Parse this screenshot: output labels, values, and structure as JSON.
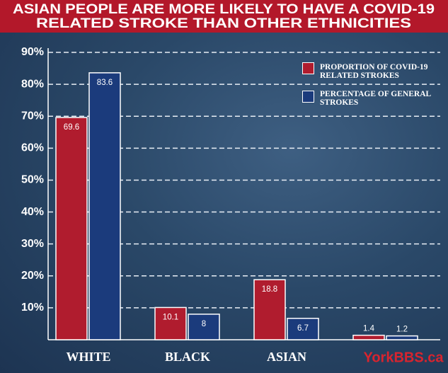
{
  "chart_data": {
    "type": "bar",
    "title": [
      "ASIAN PEOPLE ARE MORE LIKELY TO HAVE A COVID-19",
      "RELATED STROKE THAN OTHER ETHNICITIES"
    ],
    "categories": [
      "WHITE",
      "BLACK",
      "ASIAN",
      null
    ],
    "series": [
      {
        "name": "PROPORTION OF COVID-19 RELATED STROKES",
        "color": "#b01c2e",
        "values": [
          69.6,
          10.1,
          18.8,
          1.4
        ]
      },
      {
        "name": "PERCENTAGE OF GENERAL STROKES",
        "color": "#1b3b7c",
        "values": [
          83.6,
          8.0,
          6.7,
          1.2
        ]
      }
    ],
    "ylim": [
      0,
      90
    ],
    "yticks": [
      {
        "value": 10,
        "label": "10%"
      },
      {
        "value": 20,
        "label": "20%"
      },
      {
        "value": 30,
        "label": "30%"
      },
      {
        "value": 40,
        "label": "40%"
      },
      {
        "value": 50,
        "label": "50%"
      },
      {
        "value": 60,
        "label": "60%"
      },
      {
        "value": 70,
        "label": "70%"
      },
      {
        "value": 80,
        "label": "80%"
      },
      {
        "value": 90,
        "label": "90%"
      }
    ],
    "grid": true,
    "legend": "top-right",
    "watermark": "YorkBBS.ca"
  }
}
